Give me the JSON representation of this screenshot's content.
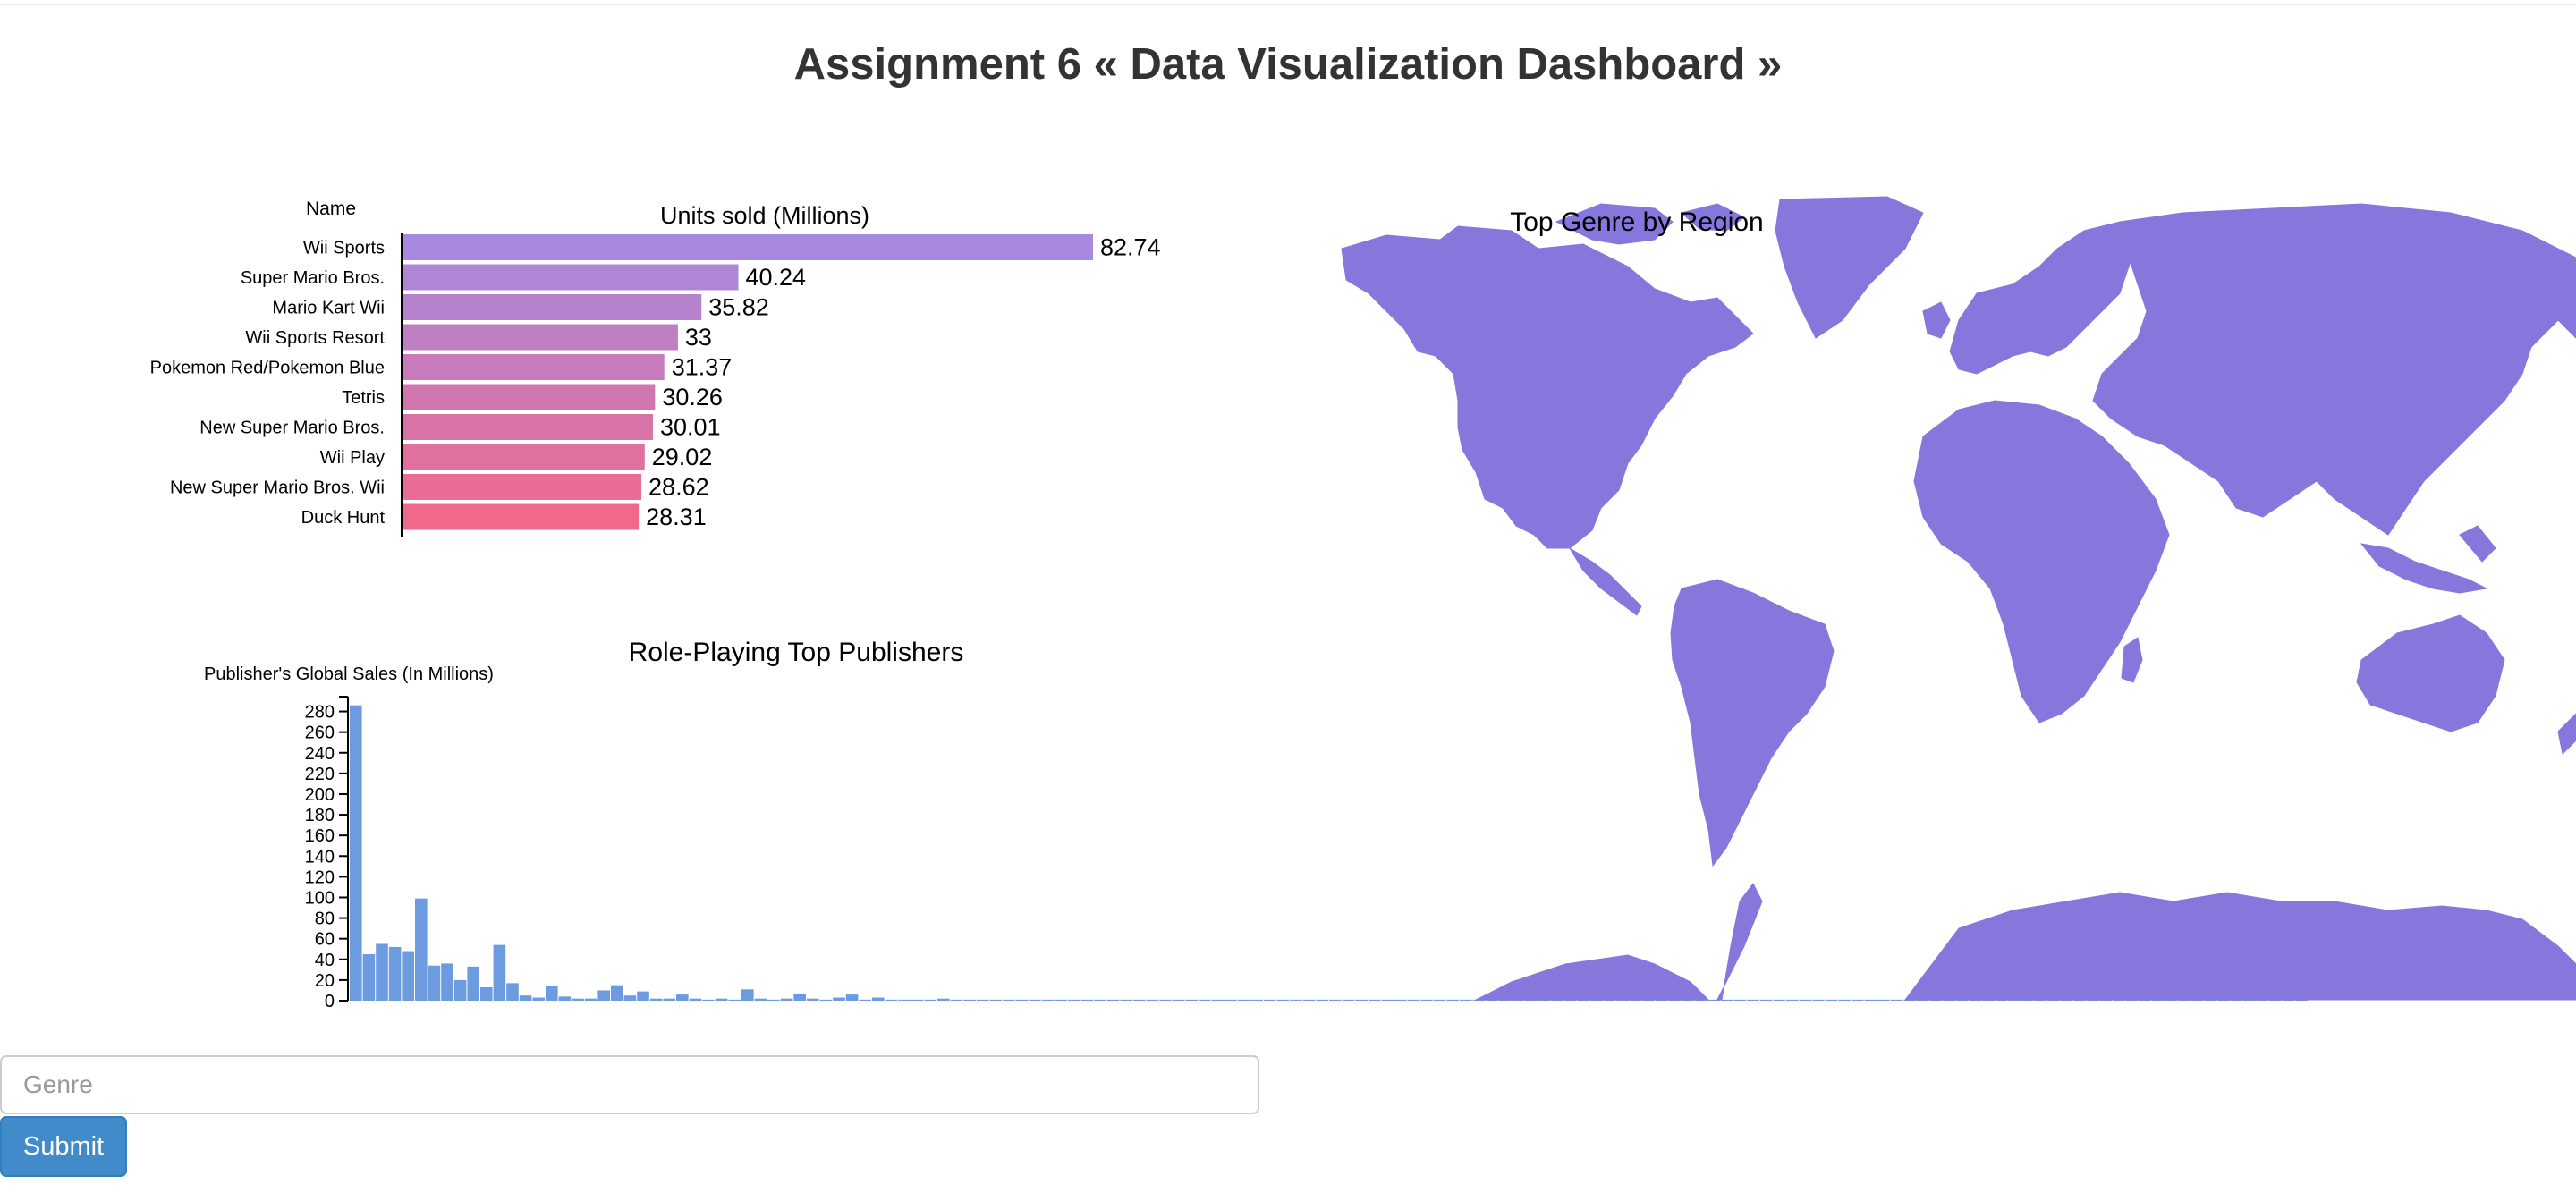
{
  "page": {
    "title": "Assignment 6 « Data Visualization Dashboard »"
  },
  "form": {
    "genre_placeholder": "Genre",
    "submit_label": "Submit"
  },
  "colors": {
    "bar_start": "#a78ae0",
    "bar_end": "#f0688a",
    "histogram": "#6c9be0",
    "map": "#8677dd",
    "axis": "#000000"
  },
  "chart_data": [
    {
      "type": "bar",
      "orientation": "horizontal",
      "title": "Units sold (Millions)",
      "ylabel": "Name",
      "categories": [
        "Wii Sports",
        "Super Mario Bros.",
        "Mario Kart Wii",
        "Wii Sports Resort",
        "Pokemon Red/Pokemon Blue",
        "Tetris",
        "New Super Mario Bros.",
        "Wii Play",
        "New Super Mario Bros. Wii",
        "Duck Hunt"
      ],
      "values": [
        82.74,
        40.24,
        35.82,
        33,
        31.37,
        30.26,
        30.01,
        29.02,
        28.62,
        28.31
      ],
      "value_labels": [
        "82.74",
        "40.24",
        "35.82",
        "33",
        "31.37",
        "30.26",
        "30.01",
        "29.02",
        "28.62",
        "28.31"
      ],
      "xlim": [
        0,
        82.74
      ],
      "grid": false
    },
    {
      "type": "bar",
      "title": "Role-Playing Top Publishers",
      "ylabel": "Publisher's Global Sales (In Millions)",
      "ylim": [
        0,
        290
      ],
      "yticks": [
        0,
        20,
        40,
        60,
        80,
        100,
        120,
        140,
        160,
        180,
        200,
        220,
        240,
        260,
        280
      ],
      "values": [
        286,
        45,
        55,
        52,
        48,
        99,
        34,
        36,
        20,
        33,
        13,
        54,
        17,
        5,
        3,
        14,
        4,
        2,
        2,
        10,
        15,
        5,
        9,
        2,
        2,
        6,
        2,
        1,
        2,
        1,
        11,
        2,
        1,
        2,
        7,
        2,
        1,
        3,
        6,
        1,
        3,
        1,
        1,
        1,
        1,
        2,
        1,
        1,
        1,
        1,
        1,
        1,
        1,
        1,
        1,
        1,
        1,
        1,
        1,
        1,
        1,
        1,
        1,
        1,
        1,
        1,
        1,
        1,
        1,
        1,
        1,
        1,
        1,
        1,
        1,
        1,
        1,
        1,
        1,
        1,
        1,
        1,
        1,
        1,
        1,
        1,
        1,
        1,
        1,
        1,
        1,
        1,
        1,
        1,
        1,
        1,
        1,
        1,
        1,
        1,
        1,
        1,
        1,
        1,
        1,
        1,
        1,
        1,
        1,
        1,
        1,
        1,
        1,
        1,
        1,
        1,
        1,
        1,
        1,
        1,
        1,
        1,
        1,
        1,
        1,
        1,
        1,
        1,
        1,
        1,
        1,
        1,
        1,
        1,
        1,
        1,
        1,
        1,
        1,
        1,
        1,
        1,
        1,
        1,
        1,
        1,
        1,
        1,
        1,
        1
      ],
      "grid": false
    },
    {
      "type": "map",
      "title": "Top Genre by Region"
    }
  ]
}
